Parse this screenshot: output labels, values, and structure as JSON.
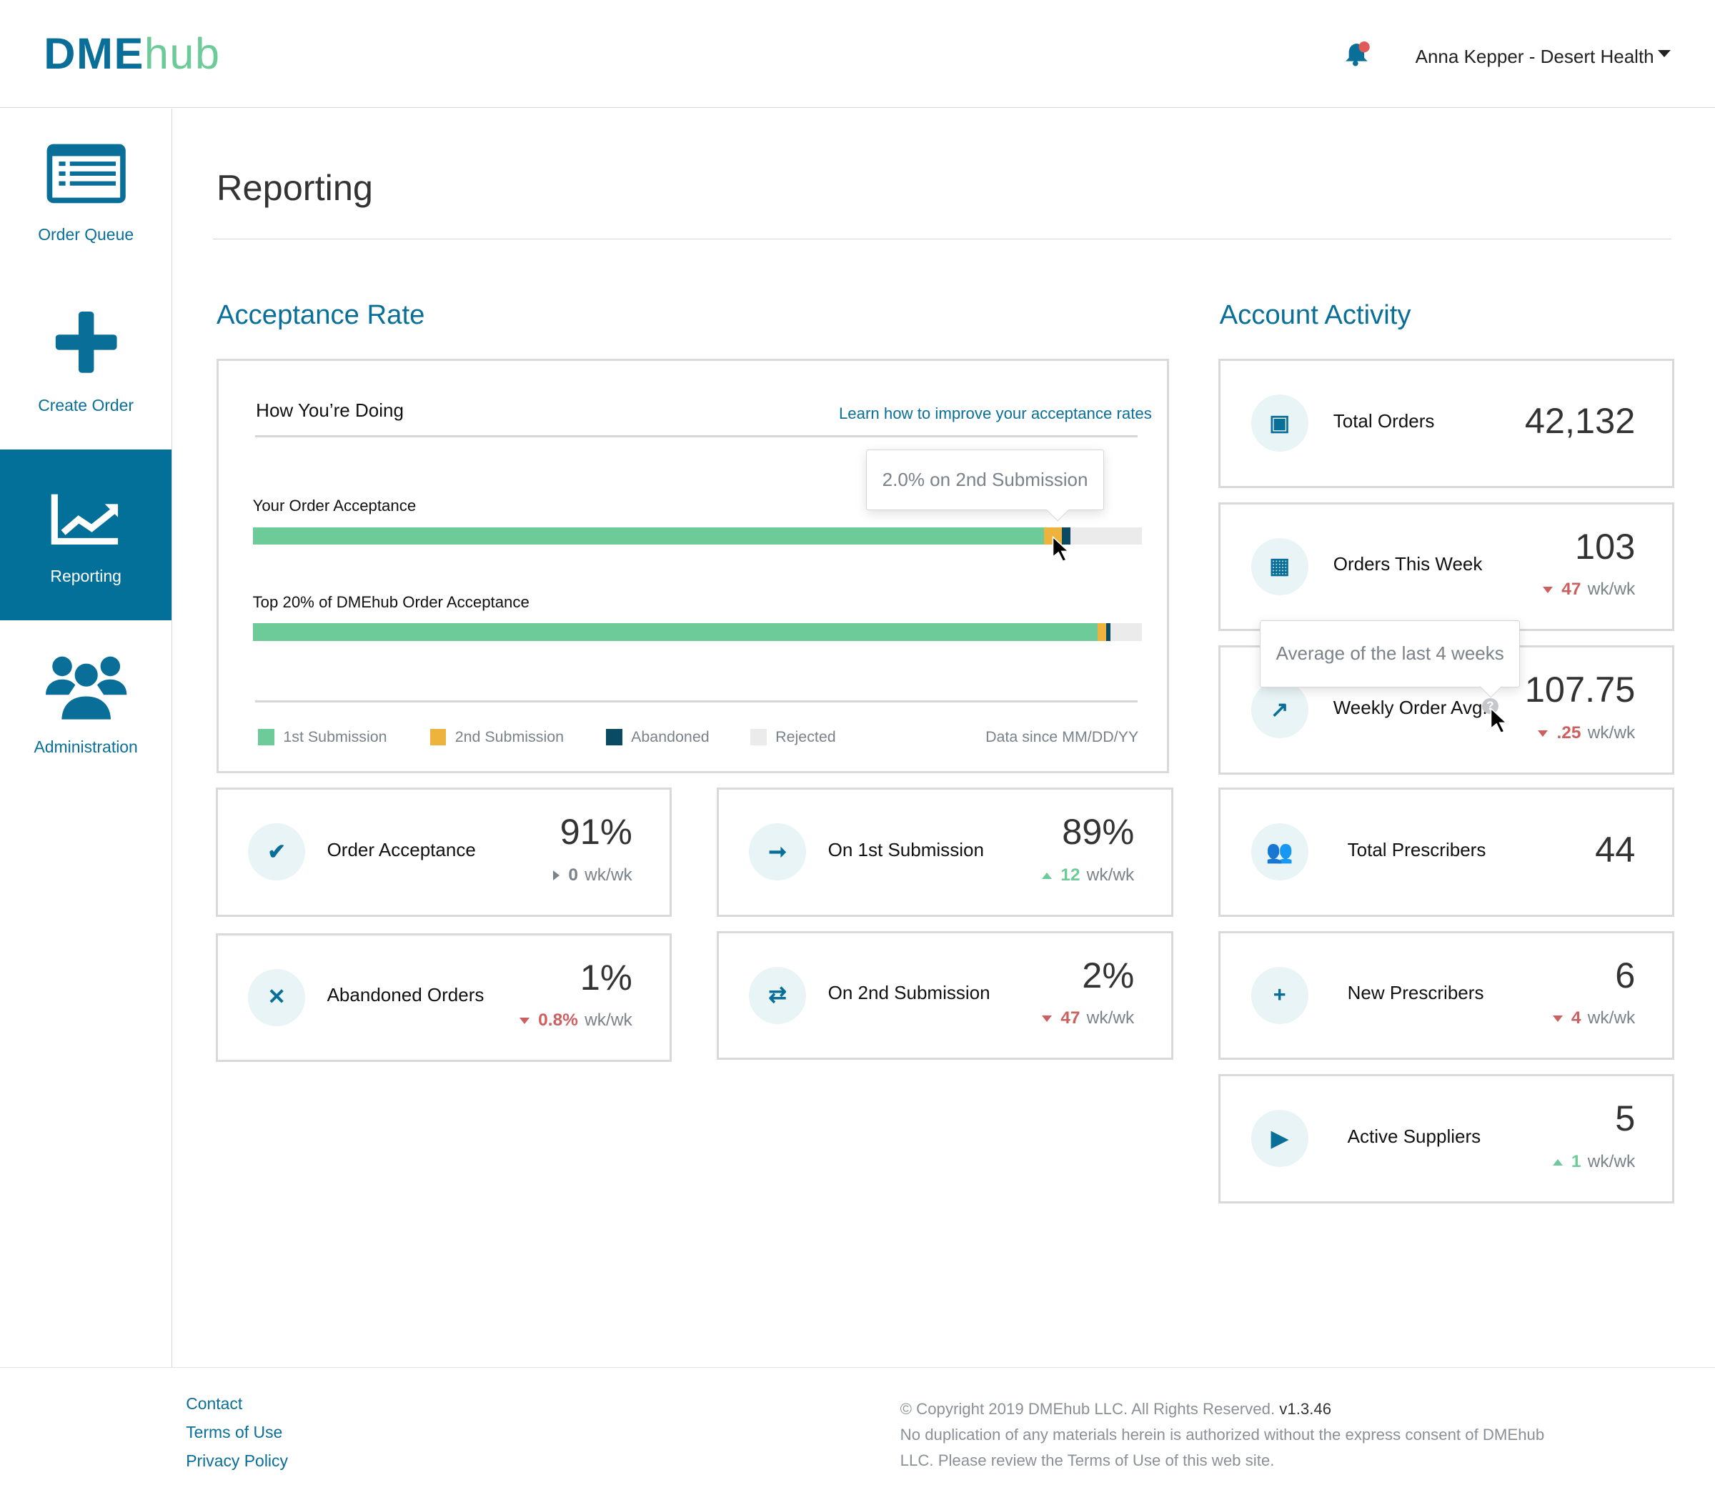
{
  "header": {
    "logo_bold": "DME",
    "logo_light": "hub",
    "user": "Anna Kepper - Desert Health"
  },
  "sidebar": {
    "items": [
      {
        "label": "Order Queue",
        "icon": "list-icon"
      },
      {
        "label": "Create Order",
        "icon": "plus-icon"
      },
      {
        "label": "Reporting",
        "icon": "chart-icon",
        "active": true
      },
      {
        "label": "Administration",
        "icon": "users-icon"
      }
    ]
  },
  "page_title": "Reporting",
  "acceptance": {
    "section_title": "Acceptance Rate",
    "card_title": "How You’re Doing",
    "learn_link": "Learn how to improve your acceptance rates",
    "tooltip": "2.0% on 2nd Submission",
    "bars": [
      {
        "label": "Your Order Acceptance",
        "first": 89,
        "second": 2,
        "abandoned": 1
      },
      {
        "label": "Top 20% of DMEhub Order Acceptance",
        "first": 95,
        "second": 1,
        "abandoned": 0.5
      }
    ],
    "legend": [
      {
        "label": "1st Submission",
        "color": "#6ccb98"
      },
      {
        "label": "2nd Submission",
        "color": "#edb33c"
      },
      {
        "label": "Abandoned",
        "color": "#0b4a63"
      },
      {
        "label": "Rejected",
        "color": "#ebebeb"
      }
    ],
    "data_since": "Data since MM/DD/YY",
    "stats": [
      {
        "label": "Order Acceptance",
        "value": "91%",
        "delta": "0",
        "unit": "wk/wk",
        "trend": "flat",
        "icon": "check-icon"
      },
      {
        "label": "On 1st Submission",
        "value": "89%",
        "delta": "12",
        "unit": "wk/wk",
        "trend": "up",
        "icon": "arrow-right-icon"
      },
      {
        "label": "Abandoned Orders",
        "value": "1%",
        "delta": "0.8%",
        "unit": "wk/wk",
        "trend": "down",
        "icon": "x-icon"
      },
      {
        "label": "On 2nd Submission",
        "value": "2%",
        "delta": "47",
        "unit": "wk/wk",
        "trend": "down",
        "icon": "swap-icon"
      }
    ]
  },
  "activity": {
    "section_title": "Account Activity",
    "tooltip": "Average of the last 4 weeks",
    "items": [
      {
        "label": "Total Orders",
        "value": "42,132",
        "icon": "box-icon"
      },
      {
        "label": "Orders This Week",
        "value": "103",
        "delta": "47",
        "unit": "wk/wk",
        "trend": "down",
        "icon": "calendar-icon"
      },
      {
        "label": "Weekly Order Avg.",
        "value": "107.75",
        "delta": ".25",
        "unit": "wk/wk",
        "trend": "down",
        "icon": "chart-icon"
      },
      {
        "label": "Total Prescribers",
        "value": "44",
        "icon": "users-icon"
      },
      {
        "label": "New Prescribers",
        "value": "6",
        "delta": "4",
        "unit": "wk/wk",
        "trend": "down",
        "icon": "user-plus-icon"
      },
      {
        "label": "Active Suppliers",
        "value": "5",
        "delta": "1",
        "unit": "wk/wk",
        "trend": "up",
        "icon": "truck-icon"
      }
    ]
  },
  "footer": {
    "links": [
      "Contact",
      "Terms of Use",
      "Privacy Policy"
    ],
    "copyright": "© Copyright 2019 DMEhub LLC. All Rights Reserved.",
    "version": "v1.3.46",
    "notice": "No duplication of any materials herein is authorized without the express consent of DMEhub LLC. Please review the Terms of Use of this web site."
  }
}
